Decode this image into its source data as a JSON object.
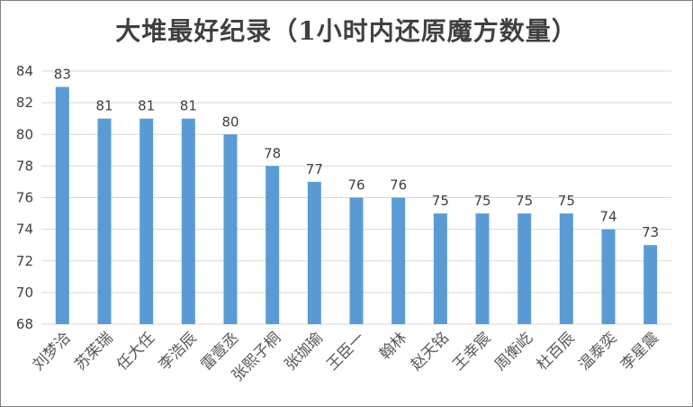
{
  "chart_data": {
    "type": "bar",
    "title": "大堆最好纪录（1小时内还原魔方数量）",
    "categories": [
      "刘梦洽",
      "苏茱瑞",
      "任大任",
      "李浩辰",
      "雷壹丞",
      "张熙子桐",
      "张珈瑜",
      "王臣一",
      "翰林",
      "赵天铭",
      "王幸宸",
      "周衡屹",
      "杜百辰",
      "温泰奕",
      "李星震"
    ],
    "values": [
      83,
      81,
      81,
      81,
      80,
      78,
      77,
      76,
      76,
      75,
      75,
      75,
      75,
      74,
      73
    ],
    "ylim": [
      68,
      84
    ],
    "yticks": [
      68,
      70,
      72,
      74,
      76,
      78,
      80,
      82,
      84
    ],
    "grid": true,
    "bar_color": "#5b9bd5",
    "grid_color": "#d9d9d9",
    "xlabel": "",
    "ylabel": ""
  }
}
